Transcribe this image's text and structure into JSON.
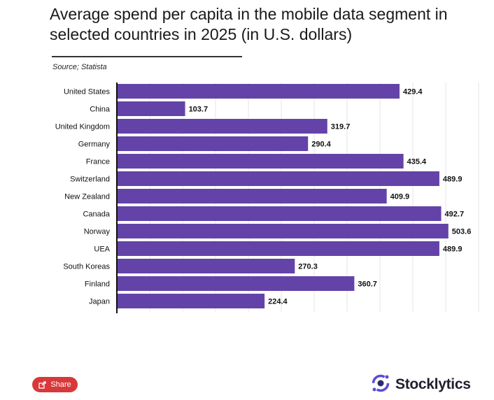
{
  "title": "Average spend per capita in the mobile data segment in selected countries in 2025 (in U.S. dollars)",
  "source": "Source; Statista",
  "share_label": "Share",
  "brand": {
    "name": "Stocklytics",
    "logo_icon": "stocklytics-logo-icon"
  },
  "colors": {
    "bar": "#6443a8",
    "share": "#d9383a",
    "brand_purple": "#5b4bd6"
  },
  "chart_data": {
    "type": "bar",
    "orientation": "horizontal",
    "categories": [
      "United States",
      "China",
      "United Kingdom",
      "Germany",
      "France",
      "Switzerland",
      "New Zealand",
      "Canada",
      "Norway",
      "UEA",
      "South Koreas",
      "Finland",
      "Japan"
    ],
    "values": [
      429.4,
      103.7,
      319.7,
      290.4,
      435.4,
      489.9,
      409.9,
      492.7,
      503.6,
      489.9,
      270.3,
      360.7,
      224.4
    ],
    "data_labels": [
      "429.4",
      "103.7",
      "319.7",
      "290.4",
      "435.4",
      "489.9",
      "409.9",
      "492.7",
      "503.6",
      "489.9",
      "270.3",
      "360.7",
      "224.4"
    ],
    "xlim": [
      0,
      550
    ],
    "grid": true,
    "legend": "none",
    "title": "Average spend per capita in the mobile data segment in selected countries in 2025 (in U.S. dollars)",
    "xlabel": "",
    "ylabel": ""
  }
}
